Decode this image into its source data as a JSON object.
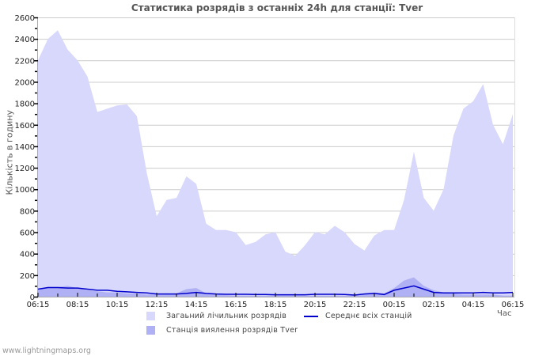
{
  "title": "Статистика розрядів з останніх 24h для станції: Tver",
  "footer": "www.lightningmaps.org",
  "colors": {
    "total_fill": "#d8d8fc",
    "station_fill": "#b0b0f4",
    "average_line": "#0000cc",
    "grid": "#cccccc",
    "axis": "#aaaaaa"
  },
  "chart_data": {
    "type": "area",
    "title": "Статистика розрядів з останніх 24h для станції: Tver",
    "xlabel": "Час",
    "ylabel": "Кількість в годину",
    "ylim": [
      0,
      2600
    ],
    "yticks": [
      0,
      200,
      400,
      600,
      800,
      1000,
      1200,
      1400,
      1600,
      1800,
      2000,
      2200,
      2400,
      2600
    ],
    "xticks": [
      "06:15",
      "08:15",
      "10:15",
      "12:15",
      "14:15",
      "16:15",
      "18:15",
      "20:15",
      "22:15",
      "00:15",
      "02:15",
      "04:15",
      "06:15"
    ],
    "grid": true,
    "legend_position": "bottom",
    "x": [
      "06:15",
      "06:45",
      "07:15",
      "07:45",
      "08:15",
      "08:45",
      "09:15",
      "09:45",
      "10:15",
      "10:45",
      "11:15",
      "11:45",
      "12:15",
      "12:45",
      "13:15",
      "13:45",
      "14:15",
      "14:45",
      "15:15",
      "15:45",
      "16:15",
      "16:45",
      "17:15",
      "17:45",
      "18:15",
      "18:45",
      "19:15",
      "19:45",
      "20:15",
      "20:45",
      "21:15",
      "21:45",
      "22:15",
      "22:45",
      "23:15",
      "23:45",
      "00:15",
      "00:45",
      "01:15",
      "01:45",
      "02:15",
      "02:45",
      "03:15",
      "03:45",
      "04:15",
      "04:45",
      "05:15",
      "05:45",
      "06:15"
    ],
    "series": [
      {
        "name": "Загаьний лічильник розрядів",
        "kind": "area",
        "values": [
          2200,
          2400,
          2480,
          2300,
          2200,
          2050,
          1720,
          1750,
          1780,
          1790,
          1680,
          1150,
          750,
          900,
          920,
          1120,
          1050,
          680,
          620,
          620,
          600,
          480,
          510,
          580,
          600,
          420,
          380,
          480,
          600,
          580,
          660,
          600,
          490,
          430,
          570,
          620,
          620,
          900,
          1350,
          920,
          800,
          1000,
          1500,
          1750,
          1820,
          1980,
          1600,
          1420,
          1700
        ]
      },
      {
        "name": "Станція виялення розрядів Tver",
        "kind": "area",
        "values": [
          60,
          90,
          90,
          100,
          80,
          60,
          50,
          40,
          40,
          30,
          30,
          20,
          20,
          20,
          30,
          70,
          80,
          30,
          20,
          15,
          10,
          10,
          10,
          10,
          10,
          10,
          10,
          10,
          10,
          10,
          10,
          10,
          10,
          30,
          40,
          30,
          80,
          150,
          180,
          100,
          60,
          40,
          30,
          20,
          20,
          20,
          20,
          10,
          10
        ]
      },
      {
        "name": "Середнє всіх станцій",
        "kind": "line",
        "values": [
          70,
          85,
          85,
          80,
          80,
          70,
          60,
          60,
          50,
          45,
          40,
          35,
          25,
          25,
          25,
          30,
          40,
          30,
          25,
          22,
          22,
          22,
          20,
          20,
          18,
          18,
          18,
          18,
          22,
          22,
          22,
          20,
          15,
          25,
          30,
          20,
          60,
          80,
          100,
          70,
          40,
          35,
          35,
          35,
          35,
          40,
          35,
          35,
          40
        ]
      }
    ]
  },
  "legend": {
    "total": "Загаьний лічильник розрядів",
    "average": "Середнє всіх станцій",
    "station": "Станція виялення розрядів Tver"
  },
  "axes": {
    "xunit": "Час",
    "ylabel": "Кількість в годину"
  }
}
